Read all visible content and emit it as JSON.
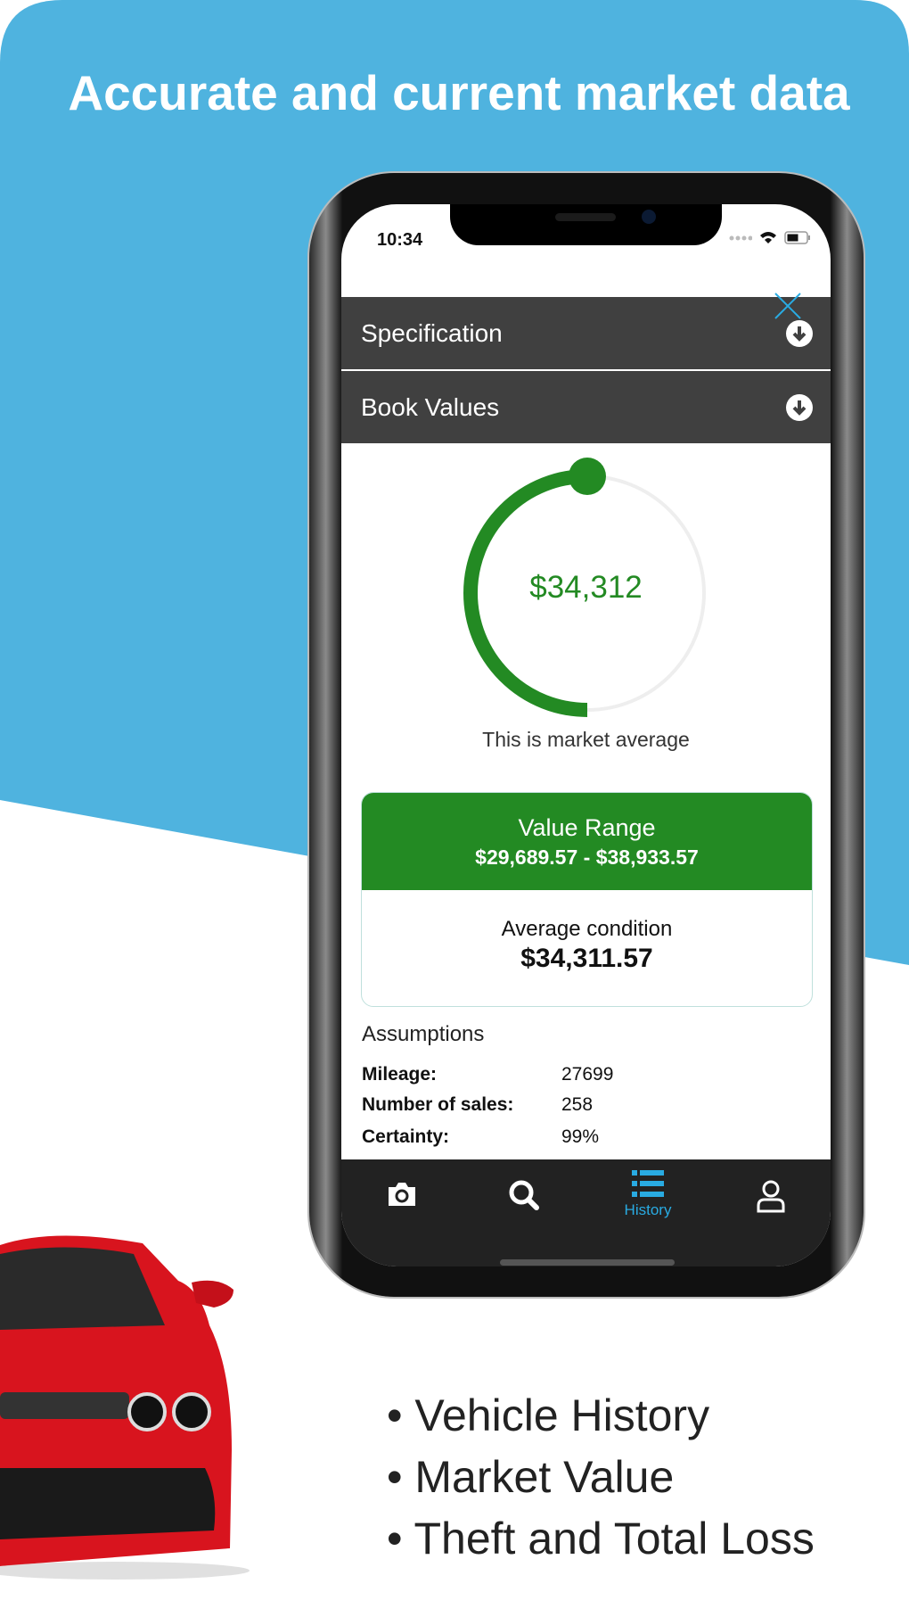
{
  "headline": "Accurate and current market data",
  "colors": {
    "brand_blue": "#4fb3df",
    "accent_green": "#238a23",
    "active_tab": "#29abe2",
    "accordion": "#404040"
  },
  "status_bar": {
    "time": "10:34",
    "icons": [
      "signal-dots-icon",
      "wifi-icon",
      "battery-icon"
    ]
  },
  "close_icon": "close-icon",
  "accordion": [
    {
      "label": "Specification",
      "icon": "arrow-down-circle-icon"
    },
    {
      "label": "Book Values",
      "icon": "arrow-down-circle-icon"
    }
  ],
  "gauge": {
    "value": "$34,312",
    "fill_fraction": 0.5,
    "caption": "This is market average"
  },
  "value_range": {
    "title": "Value Range",
    "range": "$29,689.57 - $38,933.57",
    "condition_label": "Average condition",
    "condition_value": "$34,311.57"
  },
  "assumptions": {
    "title": "Assumptions",
    "rows": [
      {
        "label": "Mileage:",
        "value": "27699"
      },
      {
        "label": "Number of sales:",
        "value": "258"
      },
      {
        "label": "Certainty:",
        "value": "99%"
      }
    ]
  },
  "tabs": [
    {
      "icon": "camera-icon",
      "label": ""
    },
    {
      "icon": "search-icon",
      "label": ""
    },
    {
      "icon": "list-icon",
      "label": "History",
      "active": true
    },
    {
      "icon": "user-icon",
      "label": ""
    }
  ],
  "bullets": [
    "• Vehicle History",
    "• Market Value",
    "• Theft and Total Loss"
  ]
}
